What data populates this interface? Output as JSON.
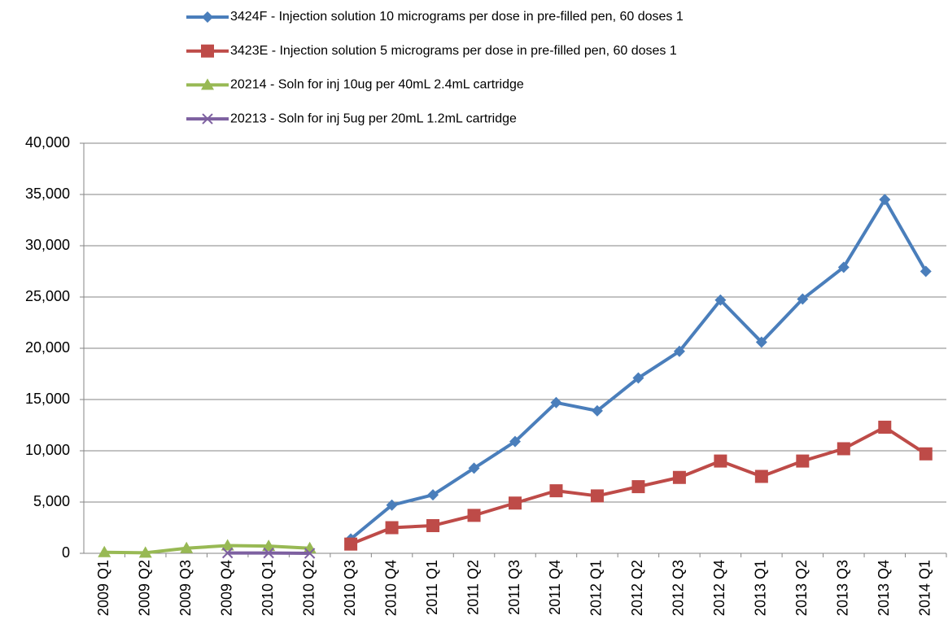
{
  "chart_data": {
    "type": "line",
    "categories": [
      "2009 Q1",
      "2009 Q2",
      "2009 Q3",
      "2009 Q4",
      "2010 Q1",
      "2010 Q2",
      "2010 Q3",
      "2010 Q4",
      "2011 Q1",
      "2011 Q2",
      "2011 Q3",
      "2011 Q4",
      "2012 Q1",
      "2012 Q2",
      "2012 Q3",
      "2012 Q4",
      "2013 Q1",
      "2013 Q2",
      "2013 Q3",
      "2013 Q4",
      "2014 Q1"
    ],
    "series": [
      {
        "name": "3424F - Injection solution 10 micrograms per dose in pre-filled pen, 60 doses 1",
        "color": "#4a7ebb",
        "marker": "diamond",
        "values": [
          null,
          null,
          null,
          null,
          null,
          null,
          1400,
          4700,
          5700,
          8300,
          10900,
          14700,
          13900,
          17100,
          19700,
          24700,
          20600,
          24800,
          27900,
          34500,
          27500
        ]
      },
      {
        "name": "3423E - Injection solution 5 micrograms per dose in pre-filled pen, 60 doses 1",
        "color": "#be4b48",
        "marker": "square",
        "values": [
          null,
          null,
          null,
          null,
          null,
          null,
          900,
          2500,
          2700,
          3700,
          4900,
          6100,
          5600,
          6500,
          7400,
          9000,
          7500,
          9000,
          10200,
          12300,
          9700
        ]
      },
      {
        "name": "20214 - Soln for inj 10ug per 40mL 2.4mL cartridge",
        "color": "#98b954",
        "marker": "triangle",
        "values": [
          100,
          50,
          500,
          750,
          700,
          500,
          null,
          null,
          null,
          null,
          null,
          null,
          null,
          null,
          null,
          null,
          null,
          null,
          null,
          null,
          null
        ]
      },
      {
        "name": "20213 - Soln for inj 5ug per 20mL 1.2mL cartridge",
        "color": "#7d60a0",
        "marker": "x",
        "values": [
          null,
          null,
          null,
          30,
          30,
          0,
          null,
          null,
          null,
          null,
          null,
          null,
          null,
          null,
          null,
          null,
          null,
          null,
          null,
          null,
          null
        ]
      }
    ],
    "ylim": [
      0,
      40000
    ],
    "yticks": [
      0,
      {
        "value": 5000,
        "label": "5,000"
      },
      {
        "value": 10000,
        "label": "10,000"
      },
      {
        "value": 15000,
        "label": "15,000"
      },
      {
        "value": 20000,
        "label": "20,000"
      },
      {
        "value": 25000,
        "label": "25,000"
      },
      {
        "value": 30000,
        "label": "30,000"
      },
      {
        "value": 35000,
        "label": "35,000"
      },
      {
        "value": 40000,
        "label": "40,000"
      }
    ],
    "grid": true,
    "legend": "top"
  }
}
